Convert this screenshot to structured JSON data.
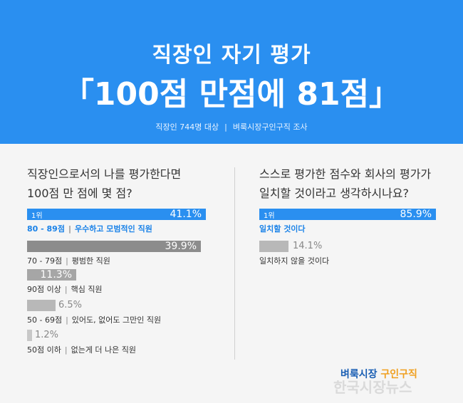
{
  "header": {
    "title": "직장인 자기 평가",
    "score_line": "「100점 만점에 81점」",
    "subtitle_survey": "직장인 744명 대상",
    "subtitle_source": "벼룩시장구인구직 조사"
  },
  "chart_data": [
    {
      "type": "bar",
      "question_line1": "직장인으로서의 나를 평가한다면",
      "question_line2": "100점 만 점에 몇 점?",
      "rank_label": "1위",
      "categories": [
        "80 - 89점",
        "70 - 79점",
        "90점 이상",
        "50 - 69점",
        "50점 이하"
      ],
      "descriptions": [
        "우수하고 모범적인 직원",
        "평범한 직원",
        "핵심 직원",
        "있어도, 없어도 그만인 직원",
        "없는게 더 나은 직원"
      ],
      "values": [
        41.1,
        39.9,
        11.3,
        6.5,
        1.2
      ],
      "value_labels": [
        "41.1%",
        "39.9%",
        "11.3%",
        "6.5%",
        "1.2%"
      ],
      "colors": [
        "#2a8ff0",
        "#8c8c8c",
        "#a6a6a6",
        "#b8b8b8",
        "#c8c8c8"
      ]
    },
    {
      "type": "bar",
      "question_line1": "스스로 평가한 점수와 회사의 평가가",
      "question_line2": "일치할 것이라고 생각하시나요?",
      "rank_label": "1위",
      "categories": [
        "일치할 것이다",
        "일치하지 않을 것이다"
      ],
      "values": [
        85.9,
        14.1
      ],
      "value_labels": [
        "85.9%",
        "14.1%"
      ],
      "colors": [
        "#2a8ff0",
        "#b8b8b8"
      ]
    }
  ],
  "footer": {
    "logo_left": "벼룩시장",
    "logo_right": "구인구직",
    "watermark": "한국시장뉴스"
  }
}
